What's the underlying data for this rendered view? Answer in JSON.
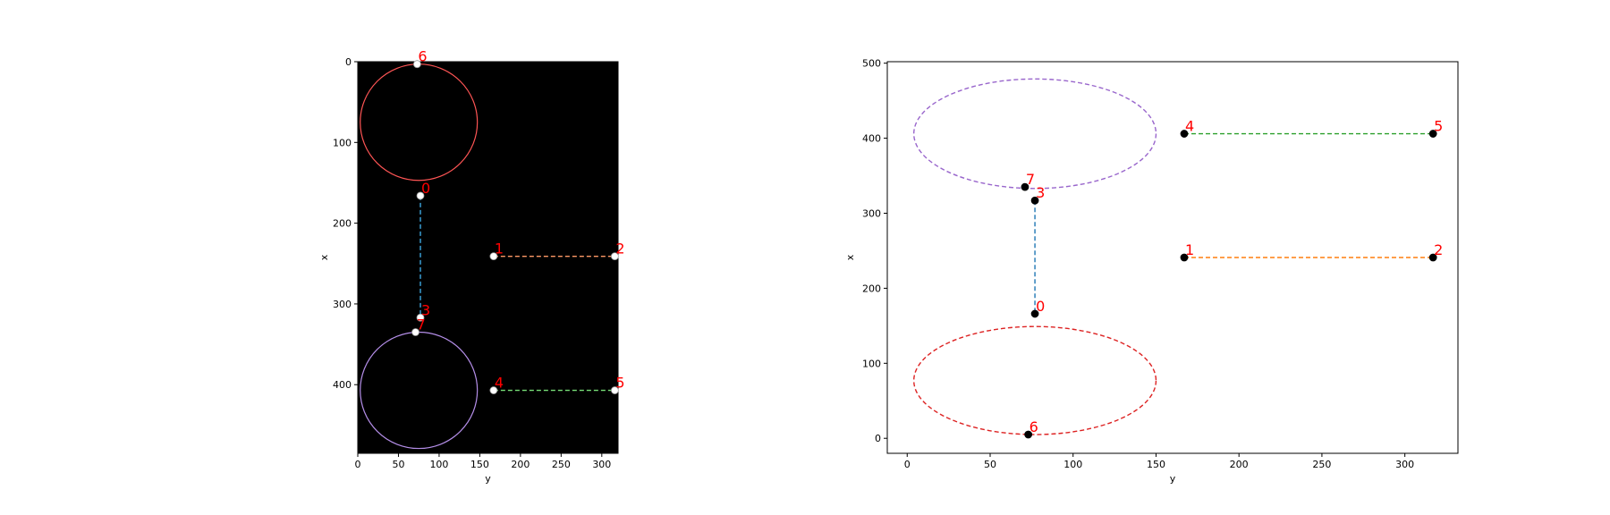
{
  "chart_data": [
    {
      "type": "image_scatter",
      "xlabel": "y",
      "ylabel": "x",
      "xlim": [
        0,
        320
      ],
      "ylim": [
        485,
        0
      ],
      "background": "#000000",
      "xticks": [
        0,
        50,
        100,
        150,
        200,
        250,
        300
      ],
      "yticks": [
        0,
        100,
        200,
        300,
        400
      ],
      "circles": [
        {
          "cx": 75,
          "cy": 75,
          "rx": 72,
          "ry": 72,
          "color": "#ff5555"
        },
        {
          "cx": 75,
          "cy": 407,
          "rx": 72,
          "ry": 72,
          "color": "#b48ee8"
        }
      ],
      "lines": [
        {
          "from": 0,
          "to": 3,
          "color": "#3ea7e0"
        },
        {
          "from": 1,
          "to": 2,
          "color": "#ff9966"
        },
        {
          "from": 4,
          "to": 5,
          "color": "#77e077"
        }
      ],
      "points": [
        {
          "label": "0",
          "x": 77,
          "y": 166
        },
        {
          "label": "1",
          "x": 167,
          "y": 241
        },
        {
          "label": "2",
          "x": 316,
          "y": 241
        },
        {
          "label": "3",
          "x": 77,
          "y": 317
        },
        {
          "label": "4",
          "x": 167,
          "y": 407
        },
        {
          "label": "5",
          "x": 316,
          "y": 407
        },
        {
          "label": "6",
          "x": 73,
          "y": 3
        },
        {
          "label": "7",
          "x": 71,
          "y": 335
        }
      ],
      "point_color": "#ffffff"
    },
    {
      "type": "scatter",
      "xlabel": "y",
      "ylabel": "x",
      "xlim": [
        -12,
        332
      ],
      "ylim": [
        -20,
        502
      ],
      "xticks": [
        0,
        50,
        100,
        150,
        200,
        250,
        300
      ],
      "yticks": [
        0,
        100,
        200,
        300,
        400,
        500
      ],
      "ellipses": [
        {
          "cx": 77,
          "cy": 406,
          "rx": 73,
          "ry": 73,
          "color": "#9966cc"
        },
        {
          "cx": 77,
          "cy": 77,
          "rx": 73,
          "ry": 72,
          "color": "#dd2222"
        }
      ],
      "lines": [
        {
          "from": 3,
          "to": 0,
          "color": "#1f77b4"
        },
        {
          "from": 4,
          "to": 5,
          "color": "#2ca02c"
        },
        {
          "from": 1,
          "to": 2,
          "color": "#ff7f0e"
        }
      ],
      "points": [
        {
          "label": "0",
          "x": 77,
          "y": 166
        },
        {
          "label": "1",
          "x": 167,
          "y": 241
        },
        {
          "label": "2",
          "x": 317,
          "y": 241
        },
        {
          "label": "3",
          "x": 77,
          "y": 317
        },
        {
          "label": "4",
          "x": 167,
          "y": 406
        },
        {
          "label": "5",
          "x": 317,
          "y": 406
        },
        {
          "label": "6",
          "x": 73,
          "y": 5
        },
        {
          "label": "7",
          "x": 71,
          "y": 335
        }
      ],
      "point_color": "#000000"
    }
  ]
}
